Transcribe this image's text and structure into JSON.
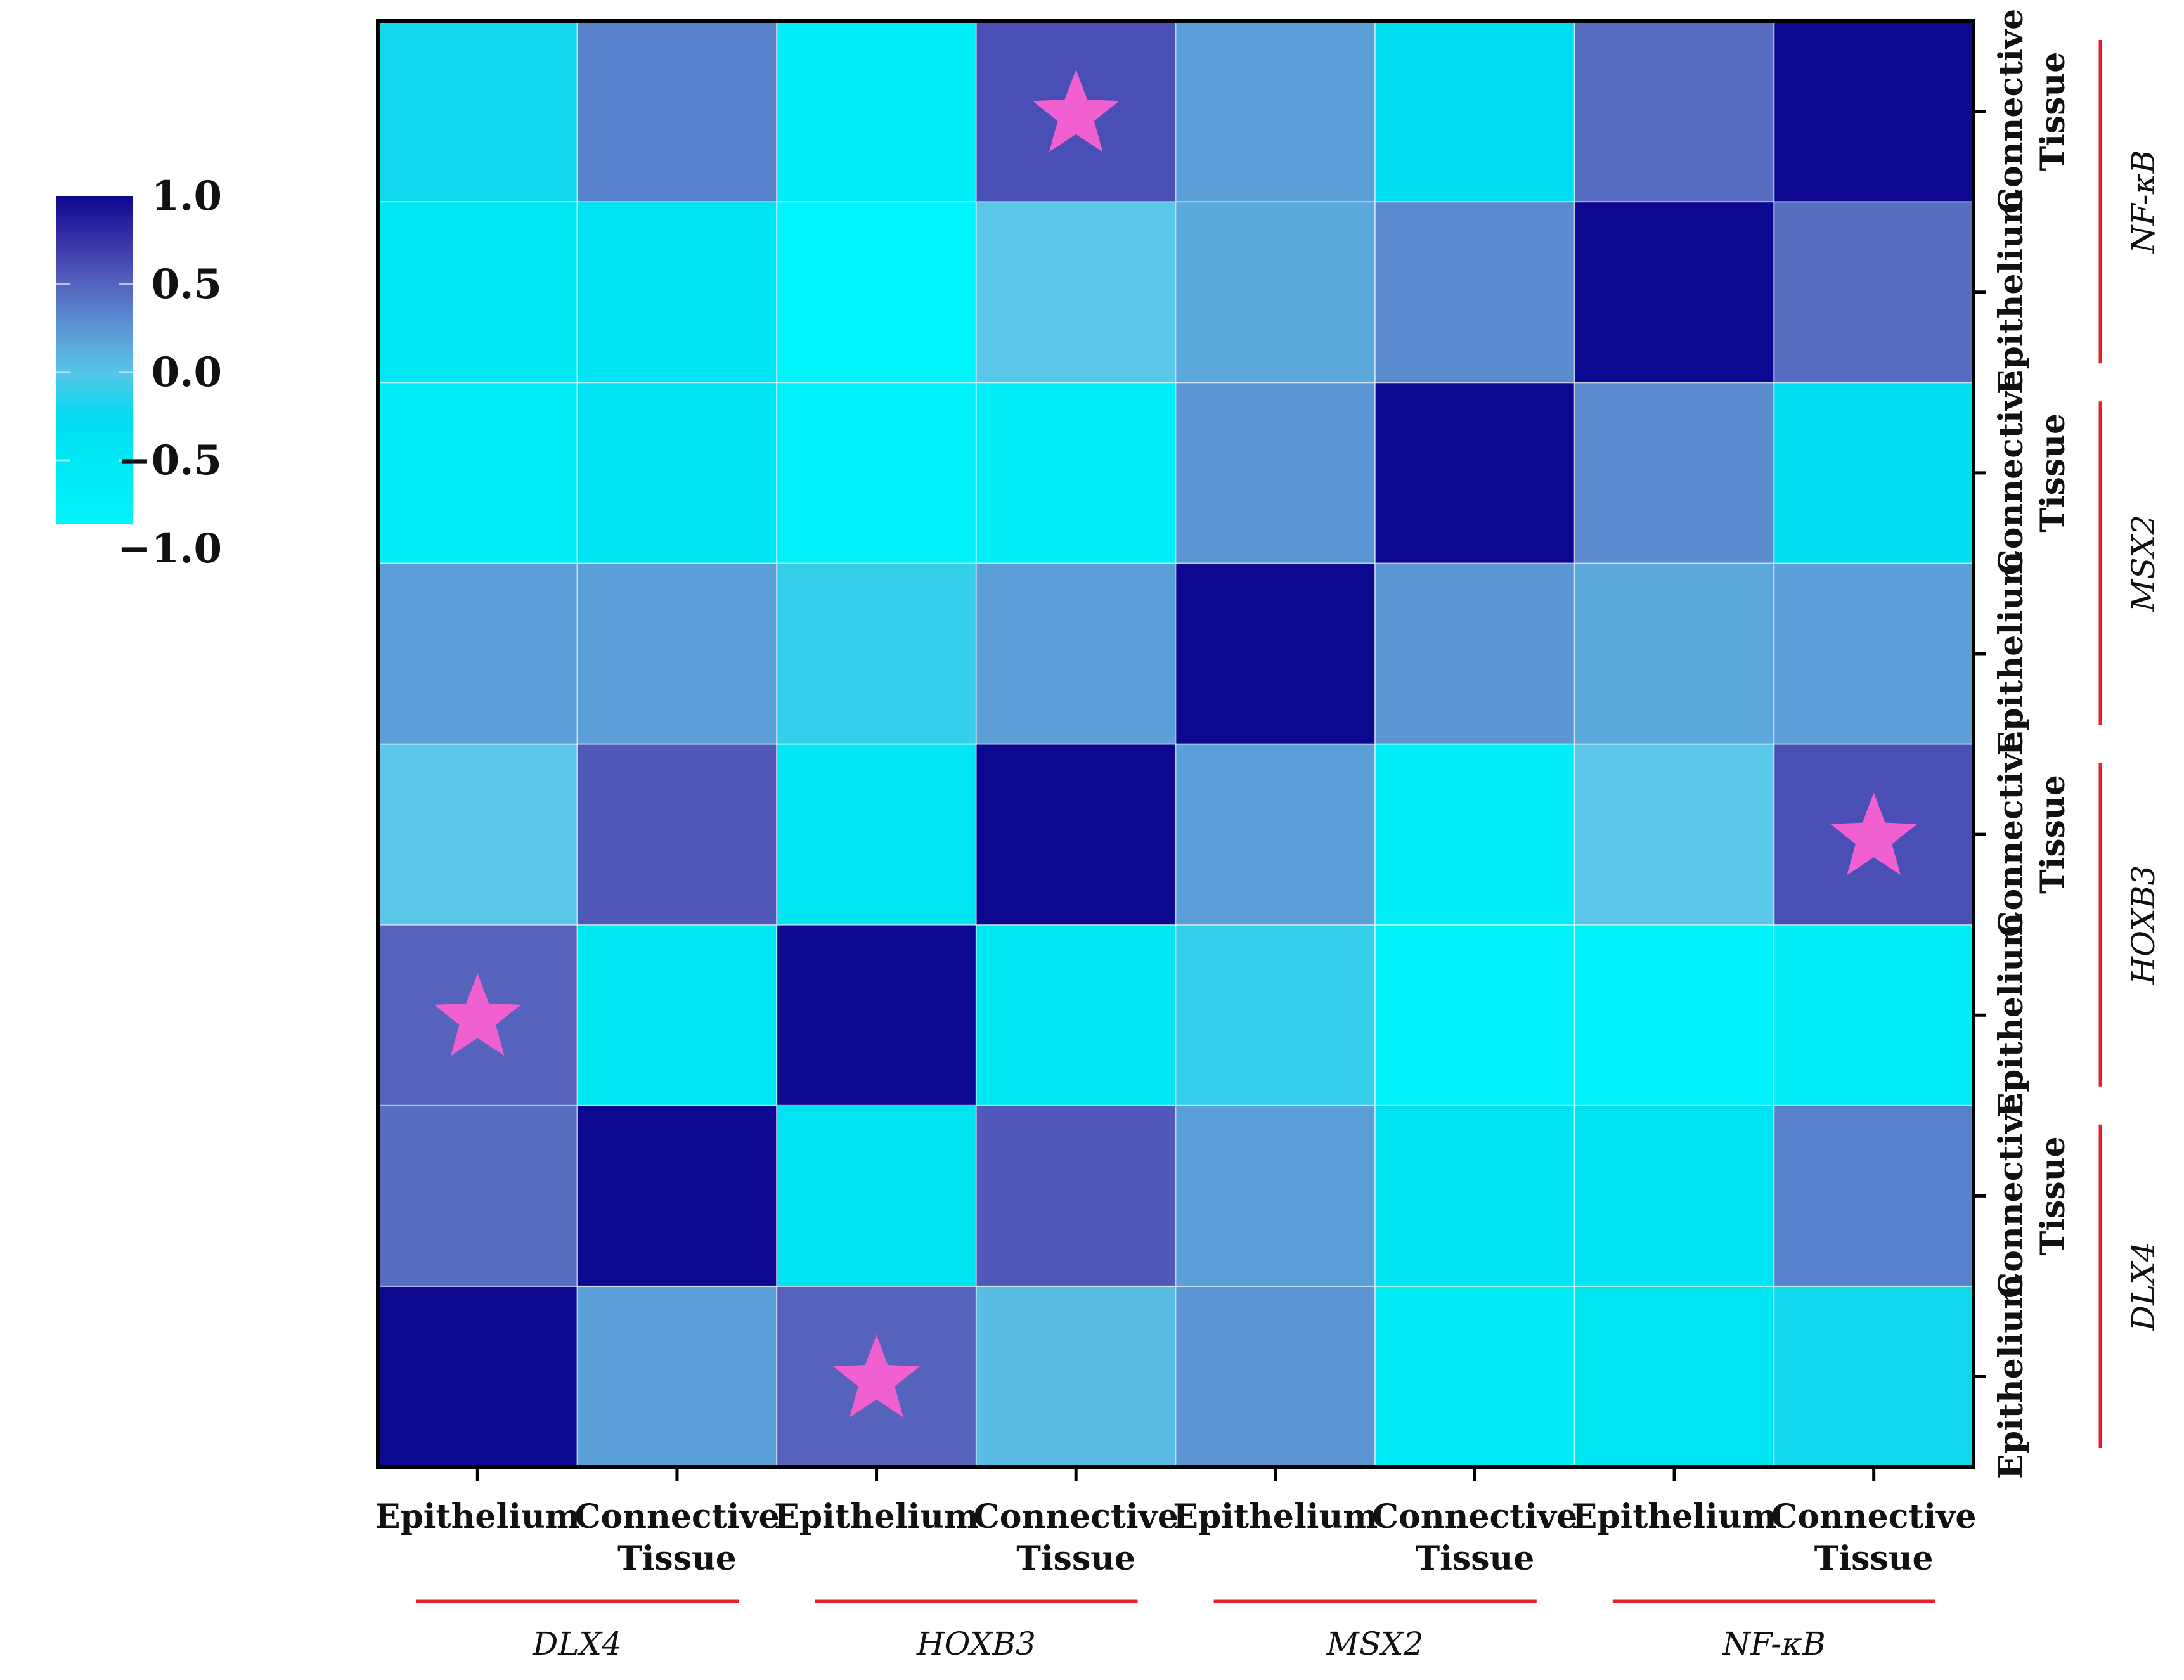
{
  "chart_data": {
    "type": "heatmap",
    "title": "",
    "genes": [
      "DLX4",
      "HOXB3",
      "MSX2",
      "NF-κB"
    ],
    "tissues": [
      "Epithelium",
      "Connective Tissue"
    ],
    "tissue_label_lines": [
      [
        "Epithelium"
      ],
      [
        "Connective",
        "Tissue"
      ]
    ],
    "categories": [
      "DLX4 Epithelium",
      "DLX4 Connective Tissue",
      "HOXB3 Epithelium",
      "HOXB3 Connective Tissue",
      "MSX2 Epithelium",
      "MSX2 Connective Tissue",
      "NF-κB Epithelium",
      "NF-κB Connective Tissue"
    ],
    "matrix_note": "matrix[i][j] = correlation between category i (row, y-axis from bottom) and category j (column, x-axis from left)",
    "matrix": [
      [
        1.0,
        0.2,
        0.5,
        0.05,
        0.25,
        -0.6,
        -0.45,
        -0.2
      ],
      [
        0.45,
        1.0,
        -0.4,
        0.55,
        0.2,
        -0.4,
        -0.4,
        0.35
      ],
      [
        0.5,
        -0.45,
        1.0,
        -0.45,
        -0.1,
        -0.8,
        -0.85,
        -0.7
      ],
      [
        0.0,
        0.55,
        -0.45,
        1.0,
        0.2,
        -0.7,
        0.0,
        0.6
      ],
      [
        0.2,
        0.2,
        -0.1,
        0.2,
        1.0,
        0.25,
        0.15,
        0.2
      ],
      [
        -0.7,
        -0.4,
        -0.8,
        -0.7,
        0.25,
        1.0,
        0.3,
        -0.3
      ],
      [
        -0.5,
        -0.4,
        -0.9,
        0.0,
        0.15,
        0.3,
        1.0,
        0.45
      ],
      [
        -0.2,
        0.35,
        -0.7,
        0.6,
        0.2,
        -0.3,
        0.45,
        1.0
      ]
    ],
    "significant": [
      [
        0,
        2
      ],
      [
        2,
        0
      ],
      [
        3,
        7
      ],
      [
        7,
        3
      ]
    ],
    "colorbar": {
      "range": [
        -1.0,
        1.0
      ],
      "ticks": [
        "1.0",
        "0.5",
        "0.0",
        "−0.5",
        "−1.0"
      ],
      "tick_values": [
        1.0,
        0.5,
        0.0,
        -0.5,
        -1.0
      ],
      "placement": "left"
    },
    "colorscale": [
      [
        -1.0,
        "#00f8fc"
      ],
      [
        -0.5,
        "#00e8f4"
      ],
      [
        -0.25,
        "#00dcf0"
      ],
      [
        0.0,
        "#5ac6e8"
      ],
      [
        0.25,
        "#5b95d4"
      ],
      [
        0.5,
        "#5563bd"
      ],
      [
        0.75,
        "#3a30a8"
      ],
      [
        1.0,
        "#0c0890"
      ]
    ],
    "colors": {
      "star": "#f060d0",
      "group_line": "#e8202a",
      "border": "#000000"
    }
  }
}
